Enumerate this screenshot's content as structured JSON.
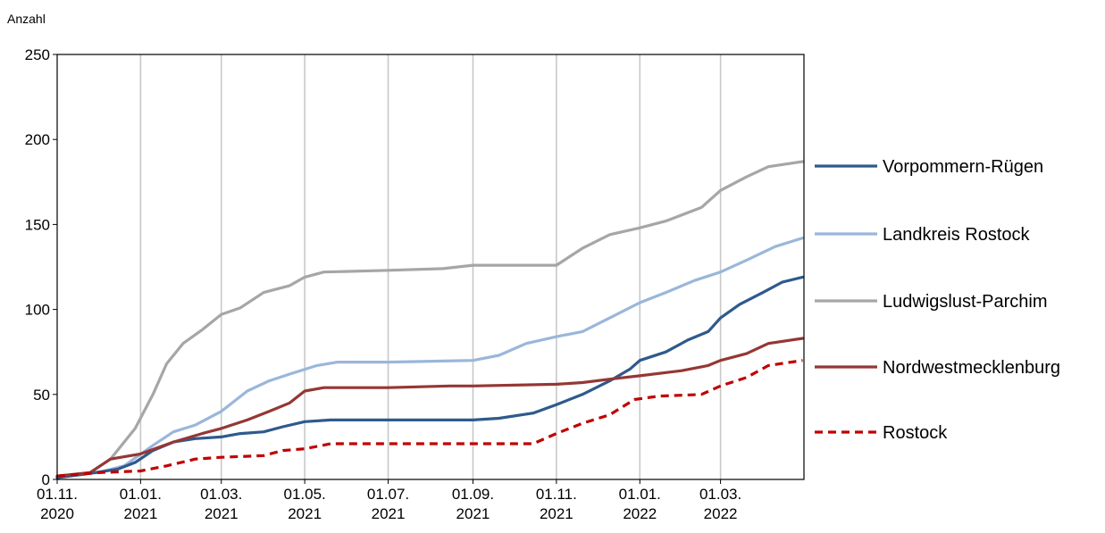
{
  "chart_data": {
    "type": "line",
    "unit_label": "Anzahl",
    "ylim": [
      0,
      250
    ],
    "yticks": [
      "0",
      "50",
      "100",
      "150",
      "200",
      "250"
    ],
    "xlim": [
      "2020-11-01",
      "2022-05-01"
    ],
    "xticks": [
      {
        "date": "2020-11-01",
        "label1": "01.11.",
        "label2": "2020"
      },
      {
        "date": "2021-01-01",
        "label1": "01.01.",
        "label2": "2021"
      },
      {
        "date": "2021-03-01",
        "label1": "01.03.",
        "label2": "2021"
      },
      {
        "date": "2021-05-01",
        "label1": "01.05.",
        "label2": "2021"
      },
      {
        "date": "2021-07-01",
        "label1": "01.07.",
        "label2": "2021"
      },
      {
        "date": "2021-09-01",
        "label1": "01.09.",
        "label2": "2021"
      },
      {
        "date": "2021-11-01",
        "label1": "01.11.",
        "label2": "2021"
      },
      {
        "date": "2022-01-01",
        "label1": "01.01.",
        "label2": "2022"
      },
      {
        "date": "2022-03-01",
        "label1": "01.03.",
        "label2": "2022"
      }
    ],
    "grid": "vertical",
    "legend_position": "right",
    "series": [
      {
        "name": "Vorpommern-Rügen",
        "color": "#2e5a8c",
        "dash": false,
        "points": [
          [
            "2020-11-01",
            1
          ],
          [
            "2020-11-20",
            3
          ],
          [
            "2020-12-15",
            6
          ],
          [
            "2020-12-28",
            10
          ],
          [
            "2021-01-10",
            17
          ],
          [
            "2021-01-25",
            22
          ],
          [
            "2021-02-10",
            24
          ],
          [
            "2021-03-01",
            25
          ],
          [
            "2021-03-15",
            27
          ],
          [
            "2021-04-01",
            28
          ],
          [
            "2021-04-15",
            31
          ],
          [
            "2021-05-01",
            34
          ],
          [
            "2021-05-20",
            35
          ],
          [
            "2021-07-01",
            35
          ],
          [
            "2021-09-01",
            35
          ],
          [
            "2021-09-20",
            36
          ],
          [
            "2021-10-15",
            39
          ],
          [
            "2021-11-01",
            44
          ],
          [
            "2021-11-20",
            50
          ],
          [
            "2021-12-10",
            58
          ],
          [
            "2021-12-25",
            65
          ],
          [
            "2022-01-01",
            70
          ],
          [
            "2022-01-20",
            75
          ],
          [
            "2022-02-05",
            82
          ],
          [
            "2022-02-20",
            87
          ],
          [
            "2022-03-01",
            95
          ],
          [
            "2022-03-15",
            103
          ],
          [
            "2022-04-01",
            110
          ],
          [
            "2022-04-15",
            116
          ],
          [
            "2022-04-30",
            119
          ]
        ]
      },
      {
        "name": "Landkreis Rostock",
        "color": "#9ab6da",
        "dash": false,
        "points": [
          [
            "2020-11-01",
            2
          ],
          [
            "2020-12-01",
            4
          ],
          [
            "2020-12-20",
            8
          ],
          [
            "2021-01-10",
            20
          ],
          [
            "2021-01-25",
            28
          ],
          [
            "2021-02-10",
            32
          ],
          [
            "2021-03-01",
            40
          ],
          [
            "2021-03-20",
            52
          ],
          [
            "2021-04-05",
            58
          ],
          [
            "2021-04-20",
            62
          ],
          [
            "2021-05-10",
            67
          ],
          [
            "2021-05-25",
            69
          ],
          [
            "2021-07-01",
            69
          ],
          [
            "2021-09-01",
            70
          ],
          [
            "2021-09-20",
            73
          ],
          [
            "2021-10-10",
            80
          ],
          [
            "2021-11-01",
            84
          ],
          [
            "2021-11-20",
            87
          ],
          [
            "2021-12-10",
            95
          ],
          [
            "2022-01-01",
            104
          ],
          [
            "2022-01-20",
            110
          ],
          [
            "2022-02-10",
            117
          ],
          [
            "2022-03-01",
            122
          ],
          [
            "2022-03-20",
            129
          ],
          [
            "2022-04-10",
            137
          ],
          [
            "2022-04-30",
            142
          ]
        ]
      },
      {
        "name": "Ludwigslust-Parchim",
        "color": "#a6a6a6",
        "dash": false,
        "points": [
          [
            "2020-11-01",
            1
          ],
          [
            "2020-11-25",
            4
          ],
          [
            "2020-12-10",
            12
          ],
          [
            "2020-12-28",
            30
          ],
          [
            "2021-01-10",
            50
          ],
          [
            "2021-01-20",
            68
          ],
          [
            "2021-02-01",
            80
          ],
          [
            "2021-02-15",
            88
          ],
          [
            "2021-03-01",
            97
          ],
          [
            "2021-03-15",
            101
          ],
          [
            "2021-04-01",
            110
          ],
          [
            "2021-04-20",
            114
          ],
          [
            "2021-05-01",
            119
          ],
          [
            "2021-05-15",
            122
          ],
          [
            "2021-07-01",
            123
          ],
          [
            "2021-08-10",
            124
          ],
          [
            "2021-09-01",
            126
          ],
          [
            "2021-10-01",
            126
          ],
          [
            "2021-11-01",
            126
          ],
          [
            "2021-11-20",
            136
          ],
          [
            "2021-12-10",
            144
          ],
          [
            "2022-01-01",
            148
          ],
          [
            "2022-01-20",
            152
          ],
          [
            "2022-02-15",
            160
          ],
          [
            "2022-03-01",
            170
          ],
          [
            "2022-03-20",
            178
          ],
          [
            "2022-04-05",
            184
          ],
          [
            "2022-04-30",
            187
          ]
        ]
      },
      {
        "name": "Nordwestmecklenburg",
        "color": "#953735",
        "dash": false,
        "points": [
          [
            "2020-11-01",
            2
          ],
          [
            "2020-11-25",
            4
          ],
          [
            "2020-12-10",
            12
          ],
          [
            "2021-01-01",
            15
          ],
          [
            "2021-01-25",
            22
          ],
          [
            "2021-02-15",
            27
          ],
          [
            "2021-03-01",
            30
          ],
          [
            "2021-03-20",
            35
          ],
          [
            "2021-04-05",
            40
          ],
          [
            "2021-04-20",
            45
          ],
          [
            "2021-05-01",
            52
          ],
          [
            "2021-05-15",
            54
          ],
          [
            "2021-07-01",
            54
          ],
          [
            "2021-08-15",
            55
          ],
          [
            "2021-09-01",
            55
          ],
          [
            "2021-11-01",
            56
          ],
          [
            "2021-11-20",
            57
          ],
          [
            "2021-12-10",
            59
          ],
          [
            "2022-01-01",
            61
          ],
          [
            "2022-02-01",
            64
          ],
          [
            "2022-02-20",
            67
          ],
          [
            "2022-03-01",
            70
          ],
          [
            "2022-03-20",
            74
          ],
          [
            "2022-04-05",
            80
          ],
          [
            "2022-04-30",
            83
          ]
        ]
      },
      {
        "name": "Rostock",
        "color": "#c00000",
        "dash": true,
        "points": [
          [
            "2020-11-01",
            2
          ],
          [
            "2020-12-01",
            4
          ],
          [
            "2021-01-01",
            5
          ],
          [
            "2021-01-20",
            8
          ],
          [
            "2021-02-10",
            12
          ],
          [
            "2021-03-01",
            13
          ],
          [
            "2021-04-01",
            14
          ],
          [
            "2021-04-15",
            17
          ],
          [
            "2021-05-01",
            18
          ],
          [
            "2021-05-20",
            21
          ],
          [
            "2021-07-01",
            21
          ],
          [
            "2021-09-01",
            21
          ],
          [
            "2021-10-15",
            21
          ],
          [
            "2021-11-01",
            27
          ],
          [
            "2021-11-20",
            33
          ],
          [
            "2021-12-10",
            38
          ],
          [
            "2021-12-28",
            47
          ],
          [
            "2022-01-15",
            49
          ],
          [
            "2022-02-15",
            50
          ],
          [
            "2022-03-01",
            55
          ],
          [
            "2022-03-20",
            60
          ],
          [
            "2022-04-05",
            67
          ],
          [
            "2022-04-30",
            70
          ]
        ]
      }
    ]
  }
}
